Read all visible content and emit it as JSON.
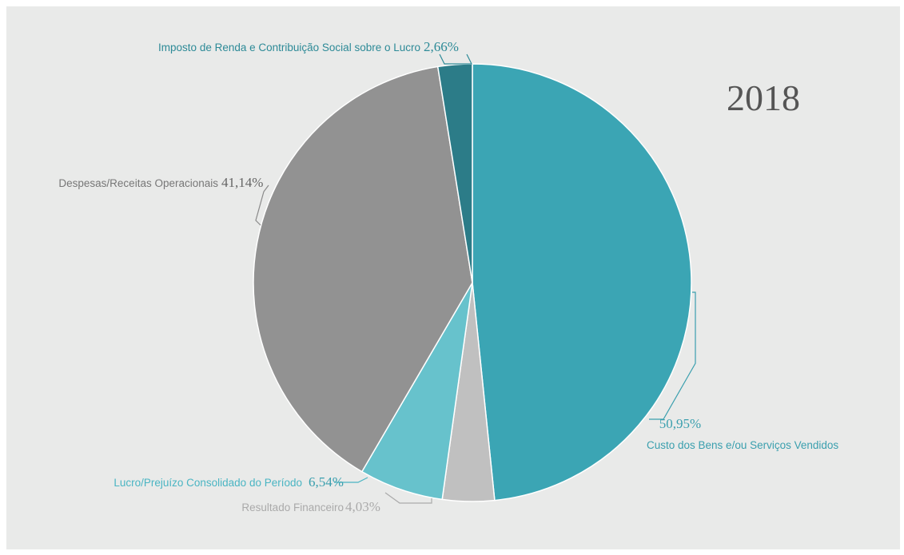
{
  "chart_data": {
    "type": "pie",
    "title": "2018",
    "slices": [
      {
        "label": "Custo dos Bens e/ou Serviços Vendidos",
        "value": 50.95,
        "pct_text": "50,95%",
        "color": "#3ba5b4",
        "label_color": "#3a9fae"
      },
      {
        "label": "Resultado Financeiro",
        "value": 4.03,
        "pct_text": "4,03%",
        "color": "#c0c0c0",
        "label_color": "#aaaaaa"
      },
      {
        "label": "Lucro/Prejuízo Consolidado do Período",
        "value": 6.54,
        "pct_text": "6,54%",
        "color": "#67c2cc",
        "label_color": "#4ab5c3"
      },
      {
        "label": "Despesas/Receitas Operacionais",
        "value": 41.14,
        "pct_text": "41,14%",
        "color": "#929292",
        "label_color": "#777777"
      },
      {
        "label": "Imposto de Renda e Contribuição Social sobre o Lucro",
        "value": 2.66,
        "pct_text": "2,66%",
        "color": "#2c7c88",
        "label_color": "#2d8a97"
      }
    ]
  }
}
